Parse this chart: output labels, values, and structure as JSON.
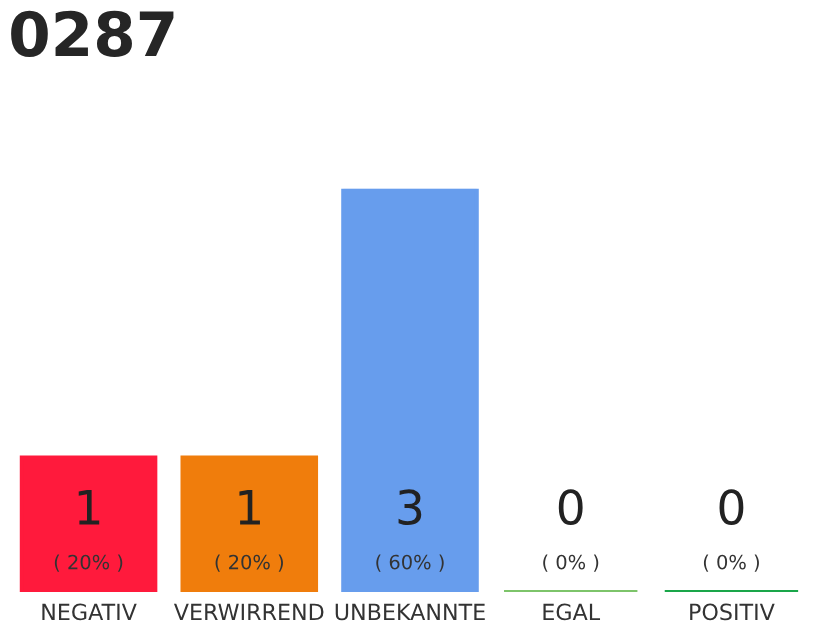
{
  "chart_data": {
    "type": "bar",
    "title": "0287",
    "ylim": [
      0,
      3
    ],
    "tick_labels": "x",
    "categories": [
      "NEGATIV",
      "VERWIRREND",
      "UNBEKANNTE",
      "EGAL",
      "POSITIV"
    ],
    "values": [
      1,
      1,
      3,
      0,
      0
    ],
    "colors": [
      "#ff1a3c",
      "#f07d0c",
      "#679ded",
      "#7dc46a",
      "#1aa64a"
    ],
    "value_labels": [
      "1\n( 20% )",
      "1\n( 20% )",
      "3\n( 60% )",
      "0\n( 0% )",
      "0\n( 0% )"
    ]
  }
}
